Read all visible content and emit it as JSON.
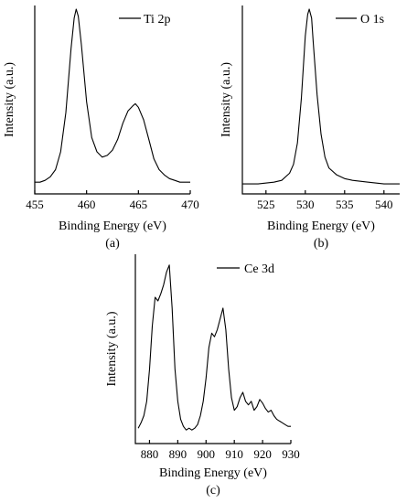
{
  "chart_data": [
    {
      "panel": "(a)",
      "type": "line",
      "title": "",
      "xlabel": "Binding Energy (eV)",
      "ylabel": "Intensity (a.u.)",
      "xlim": [
        455,
        470
      ],
      "xticks": [
        455,
        460,
        465,
        470
      ],
      "ylim": [
        0,
        1
      ],
      "grid": false,
      "legend": "top-right",
      "series": [
        {
          "name": "Ti 2p",
          "x": [
            455.0,
            455.5,
            456.0,
            456.5,
            457.0,
            457.5,
            458.0,
            458.5,
            458.8,
            459.0,
            459.2,
            459.5,
            460.0,
            460.5,
            461.0,
            461.5,
            462.0,
            462.5,
            463.0,
            463.5,
            464.0,
            464.5,
            464.7,
            465.0,
            465.5,
            466.0,
            466.5,
            467.0,
            467.5,
            468.0,
            468.5,
            469.0,
            469.5,
            470.0
          ],
          "y": [
            0.03,
            0.03,
            0.04,
            0.06,
            0.1,
            0.2,
            0.42,
            0.78,
            0.95,
            1.0,
            0.96,
            0.8,
            0.48,
            0.28,
            0.2,
            0.17,
            0.18,
            0.21,
            0.27,
            0.36,
            0.43,
            0.46,
            0.47,
            0.45,
            0.38,
            0.27,
            0.16,
            0.1,
            0.07,
            0.05,
            0.04,
            0.03,
            0.03,
            0.03
          ]
        }
      ]
    },
    {
      "panel": "(b)",
      "type": "line",
      "title": "",
      "xlabel": "Binding Energy (eV)",
      "ylabel": "Intensity (a.u.)",
      "xlim": [
        522,
        542
      ],
      "xticks": [
        525,
        530,
        535,
        540
      ],
      "ylim": [
        0,
        1
      ],
      "grid": false,
      "legend": "top-right",
      "series": [
        {
          "name": "O 1s",
          "x": [
            522.0,
            524.0,
            526.0,
            527.0,
            528.0,
            528.5,
            529.0,
            529.5,
            530.0,
            530.3,
            530.5,
            530.8,
            531.0,
            531.5,
            532.0,
            532.5,
            533.0,
            534.0,
            535.0,
            536.0,
            538.0,
            540.0,
            542.0
          ],
          "y": [
            0.02,
            0.02,
            0.03,
            0.04,
            0.08,
            0.13,
            0.25,
            0.5,
            0.85,
            0.97,
            1.0,
            0.95,
            0.82,
            0.52,
            0.3,
            0.17,
            0.11,
            0.07,
            0.05,
            0.04,
            0.03,
            0.02,
            0.02
          ]
        }
      ]
    },
    {
      "panel": "(c)",
      "type": "line",
      "title": "",
      "xlabel": "Binding Energy (eV)",
      "ylabel": "Intensity (a.u.)",
      "xlim": [
        875,
        930
      ],
      "xticks": [
        880,
        890,
        900,
        910,
        920,
        930
      ],
      "ylim": [
        0,
        1
      ],
      "grid": false,
      "legend": "top-right",
      "series": [
        {
          "name": "Ce 3d",
          "x": [
            876,
            877,
            878,
            879,
            880,
            881,
            882,
            883,
            884,
            885,
            886,
            887,
            888,
            889,
            890,
            891,
            892,
            893,
            894,
            895,
            896,
            897,
            898,
            899,
            900,
            901,
            902,
            903,
            904,
            905,
            906,
            907,
            908,
            909,
            910,
            911,
            912,
            913,
            914,
            915,
            916,
            917,
            918,
            919,
            920,
            921,
            922,
            923,
            924,
            925,
            926,
            927,
            928,
            929,
            930
          ],
          "y": [
            0.05,
            0.08,
            0.12,
            0.2,
            0.38,
            0.62,
            0.78,
            0.76,
            0.8,
            0.85,
            0.92,
            0.96,
            0.72,
            0.38,
            0.2,
            0.1,
            0.06,
            0.04,
            0.05,
            0.04,
            0.05,
            0.07,
            0.12,
            0.2,
            0.33,
            0.5,
            0.58,
            0.56,
            0.6,
            0.66,
            0.72,
            0.6,
            0.38,
            0.22,
            0.15,
            0.17,
            0.22,
            0.25,
            0.2,
            0.18,
            0.2,
            0.15,
            0.17,
            0.21,
            0.19,
            0.16,
            0.14,
            0.15,
            0.12,
            0.1,
            0.09,
            0.08,
            0.07,
            0.06,
            0.06
          ]
        }
      ]
    }
  ]
}
